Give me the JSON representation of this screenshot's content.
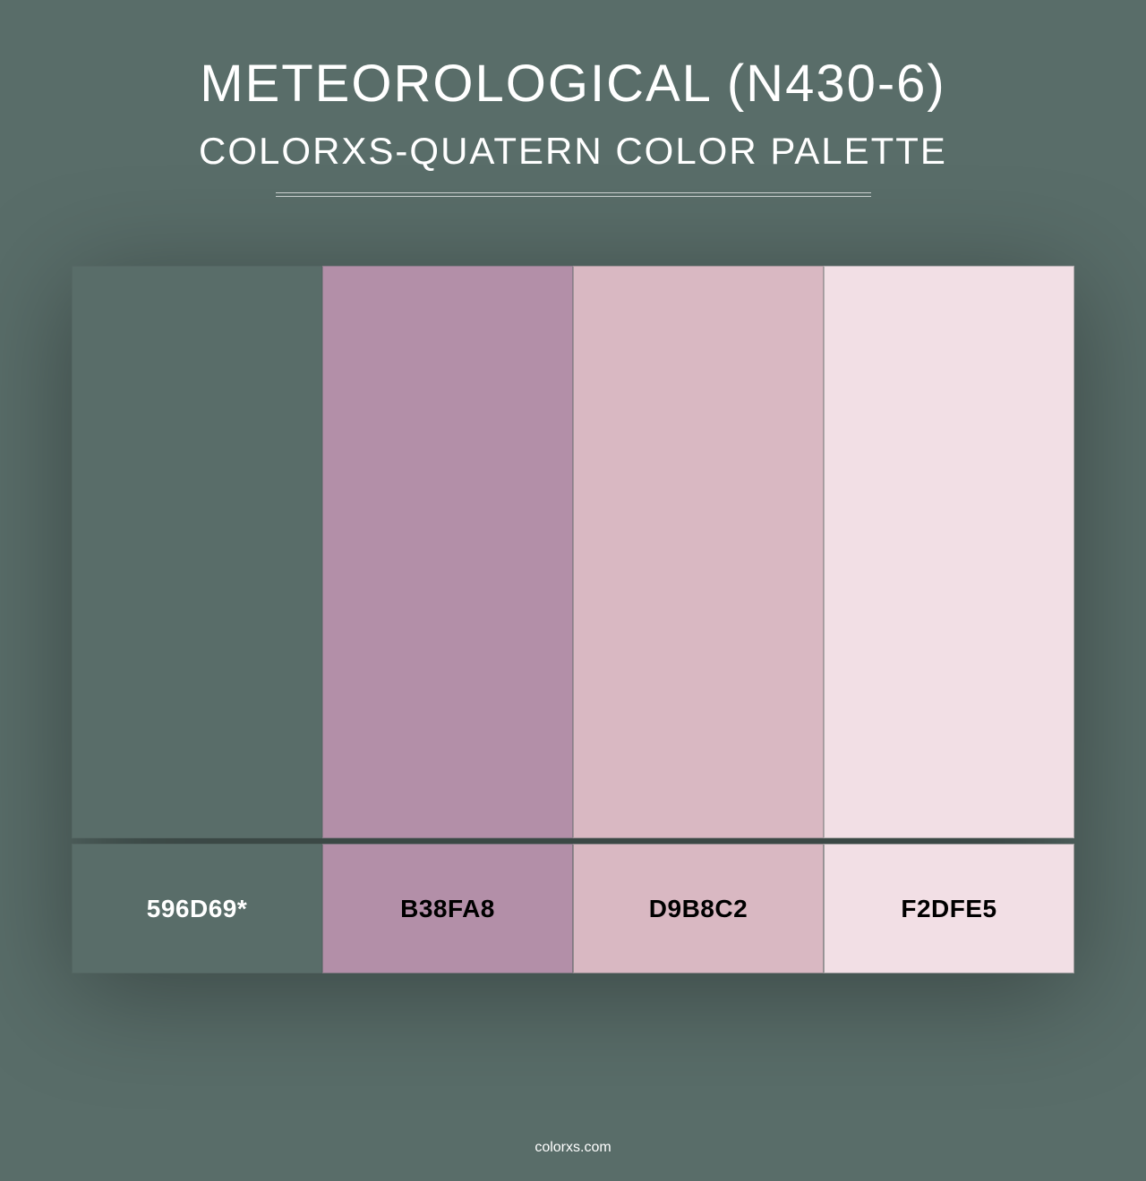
{
  "background_color": "#596d69",
  "title": "METEOROLOGICAL (N430-6)",
  "subtitle": "COLORXS-QUATERN COLOR PALETTE",
  "title_color": "#ffffff",
  "title_fontsize": 58,
  "subtitle_fontsize": 42,
  "divider_width": 665,
  "swatches": [
    {
      "hex": "#596d69",
      "label": "596D69*",
      "label_color": "#ffffff"
    },
    {
      "hex": "#b38fa8",
      "label": "B38FA8",
      "label_color": "#000000"
    },
    {
      "hex": "#d9b8c2",
      "label": "D9B8C2",
      "label_color": "#000000"
    },
    {
      "hex": "#f2dfe5",
      "label": "F2DFE5",
      "label_color": "#000000"
    }
  ],
  "swatch_height": 640,
  "label_height": 145,
  "footer": "colorxs.com",
  "footer_color": "#ffffff"
}
